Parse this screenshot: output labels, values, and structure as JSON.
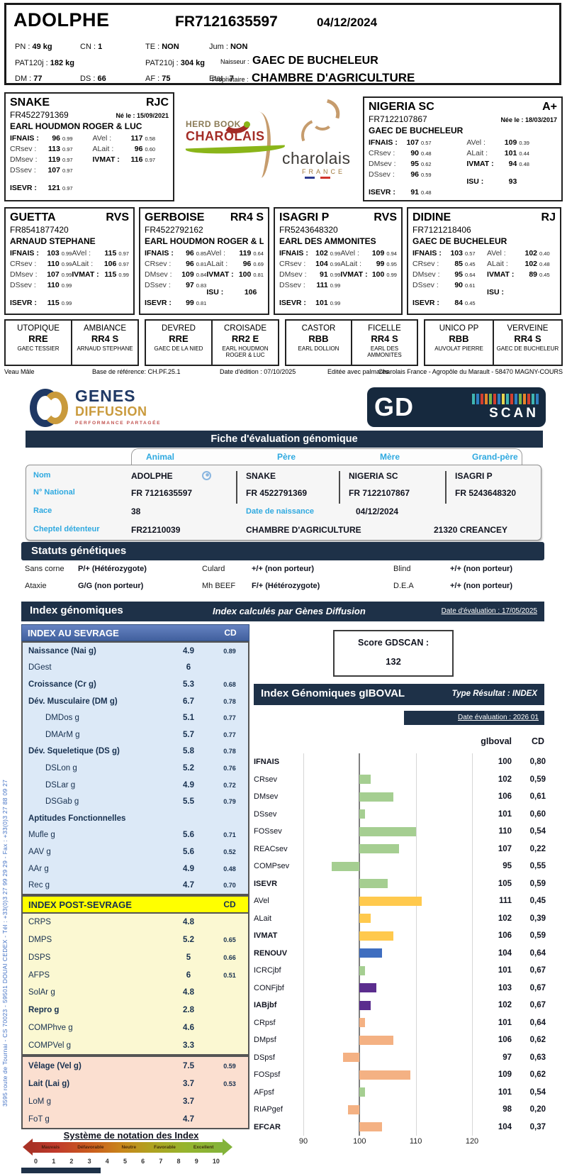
{
  "colors": {
    "navy": "#1e3148",
    "cyan": "#2ea9e0",
    "table_blue_header": "#4f6bab",
    "table_blue_bg": "#dce9f7",
    "yellow_header": "#ffff00",
    "yellow_bg": "#fbf8d2",
    "pink_bg": "#fbdfd0"
  },
  "bar_colors": {
    "green": "#a5ce91",
    "gold": "#ffc94d",
    "blue": "#3f6ec0",
    "purple": "#5b2d8e",
    "orange": "#f4b183"
  },
  "top_card": {
    "name": "ADOLPHE",
    "national_id": "FR7121635597",
    "birth_date": "04/12/2024",
    "stats_row1": [
      [
        "PN :",
        "49 kg"
      ],
      [
        "CN :",
        "1"
      ],
      [
        "TE :",
        "NON"
      ],
      [
        "Jum :",
        "NON"
      ]
    ],
    "stats_row2": [
      [
        "PAT120j :",
        "182 kg"
      ],
      [
        "PAT210j :",
        "304 kg"
      ]
    ],
    "stats_row3": [
      [
        "DM :",
        "77"
      ],
      [
        "DS :",
        "66"
      ],
      [
        "AF :",
        "75"
      ],
      [
        "Etat :",
        "7"
      ]
    ],
    "naisseur_label": "Naisseur :",
    "naisseur": "GAEC DE BUCHELEUR",
    "proprietaire_label": "Propriétaire :",
    "proprietaire": "CHAMBRE D'AGRICULTURE"
  },
  "herd_book_logo": {
    "line1": "HERD BOOK",
    "line2": "CHAROLAIS"
  },
  "charolais_logo": {
    "line1": "charolais",
    "line2": "FRANCE"
  },
  "parents": [
    {
      "name": "SNAKE",
      "grade": "RJC",
      "id": "FR4522791369",
      "born": "Né le : 15/09/2021",
      "breeder": "EARL HOUDMON ROGER & LUC",
      "left": [
        {
          "l": "IFNAIS :",
          "v": "96",
          "cd": "0.99",
          "b": true
        },
        {
          "l": "CRsev :",
          "v": "113",
          "cd": "0.97"
        },
        {
          "l": "DMsev :",
          "v": "119",
          "cd": "0.97"
        },
        {
          "l": "DSsev :",
          "v": "107",
          "cd": "0.97"
        },
        {
          "l": "ISEVR :",
          "v": "121",
          "cd": "0.97",
          "b": true,
          "gap": true
        }
      ],
      "right": [
        {
          "l": "AVel :",
          "v": "117",
          "cd": "0.58"
        },
        {
          "l": "ALait :",
          "v": "96",
          "cd": "0.60"
        },
        {
          "l": "IVMAT :",
          "v": "116",
          "cd": "0.97",
          "b": true
        }
      ]
    },
    {
      "name": "NIGERIA SC",
      "grade": "A+",
      "id": "FR7122107867",
      "born": "Née le : 18/03/2017",
      "breeder": "GAEC DE BUCHELEUR",
      "left": [
        {
          "l": "IFNAIS :",
          "v": "107",
          "cd": "0.57",
          "b": true
        },
        {
          "l": "CRsev :",
          "v": "90",
          "cd": "0.48"
        },
        {
          "l": "DMsev :",
          "v": "95",
          "cd": "0.62"
        },
        {
          "l": "DSsev :",
          "v": "96",
          "cd": "0.59"
        },
        {
          "l": "ISEVR :",
          "v": "91",
          "cd": "0.48",
          "b": true,
          "gap": true
        }
      ],
      "right": [
        {
          "l": "AVel :",
          "v": "109",
          "cd": "0.39"
        },
        {
          "l": "ALait :",
          "v": "101",
          "cd": "0.44"
        },
        {
          "l": "IVMAT :",
          "v": "94",
          "cd": "0.48",
          "b": true
        },
        {
          "l": "ISU :",
          "v": "93",
          "cd": "",
          "b": true,
          "gap": true
        }
      ]
    }
  ],
  "grandparents": [
    {
      "name": "GUETTA",
      "grade": "RVS",
      "id": "FR8541877420",
      "breeder": "ARNAUD STEPHANE",
      "left": [
        {
          "l": "IFNAIS :",
          "v": "103",
          "cd": "0.99",
          "b": true
        },
        {
          "l": "CRsev :",
          "v": "110",
          "cd": "0.99"
        },
        {
          "l": "DMsev :",
          "v": "107",
          "cd": "0.99"
        },
        {
          "l": "DSsev :",
          "v": "110",
          "cd": "0.99"
        },
        {
          "l": "ISEVR :",
          "v": "115",
          "cd": "0.99",
          "b": true,
          "gap": true
        }
      ],
      "right": [
        {
          "l": "AVel :",
          "v": "115",
          "cd": "0.97"
        },
        {
          "l": "ALait :",
          "v": "106",
          "cd": "0.97"
        },
        {
          "l": "IVMAT :",
          "v": "115",
          "cd": "0.99",
          "b": true
        }
      ]
    },
    {
      "name": "GERBOISE",
      "grade": "RR4 S",
      "id": "FR4522792162",
      "breeder": "EARL HOUDMON ROGER & LUC",
      "left": [
        {
          "l": "IFNAIS :",
          "v": "96",
          "cd": "0.85",
          "b": true
        },
        {
          "l": "CRsev :",
          "v": "96",
          "cd": "0.81"
        },
        {
          "l": "DMsev :",
          "v": "109",
          "cd": "0.84"
        },
        {
          "l": "DSsev :",
          "v": "97",
          "cd": "0.83"
        },
        {
          "l": "ISEVR :",
          "v": "99",
          "cd": "0.81",
          "b": true,
          "gap": true
        }
      ],
      "right": [
        {
          "l": "AVel :",
          "v": "119",
          "cd": "0.64"
        },
        {
          "l": "ALait :",
          "v": "96",
          "cd": "0.69"
        },
        {
          "l": "IVMAT :",
          "v": "100",
          "cd": "0.81",
          "b": true
        },
        {
          "l": "ISU :",
          "v": "106",
          "cd": "",
          "b": true,
          "gap": true
        }
      ]
    },
    {
      "name": "ISAGRI P",
      "grade": "RVS",
      "id": "FR5243648320",
      "breeder": "EARL DES AMMONITES",
      "left": [
        {
          "l": "IFNAIS :",
          "v": "102",
          "cd": "0.99",
          "b": true
        },
        {
          "l": "CRsev :",
          "v": "104",
          "cd": "0.99"
        },
        {
          "l": "DMsev :",
          "v": "91",
          "cd": "0.99"
        },
        {
          "l": "DSsev :",
          "v": "111",
          "cd": "0.99"
        },
        {
          "l": "ISEVR :",
          "v": "101",
          "cd": "0.99",
          "b": true,
          "gap": true
        }
      ],
      "right": [
        {
          "l": "AVel :",
          "v": "109",
          "cd": "0.94"
        },
        {
          "l": "ALait :",
          "v": "99",
          "cd": "0.95"
        },
        {
          "l": "IVMAT :",
          "v": "100",
          "cd": "0.99",
          "b": true
        }
      ]
    },
    {
      "name": "DIDINE",
      "grade": "RJ",
      "id": "FR7121218406",
      "breeder": "GAEC DE BUCHELEUR",
      "left": [
        {
          "l": "IFNAIS :",
          "v": "103",
          "cd": "0.57",
          "b": true
        },
        {
          "l": "CRsev :",
          "v": "85",
          "cd": "0.45"
        },
        {
          "l": "DMsev :",
          "v": "95",
          "cd": "0.64"
        },
        {
          "l": "DSsev :",
          "v": "90",
          "cd": "0.61"
        },
        {
          "l": "ISEVR :",
          "v": "84",
          "cd": "0.45",
          "b": true,
          "gap": true
        }
      ],
      "right": [
        {
          "l": "AVel :",
          "v": "102",
          "cd": "0.40"
        },
        {
          "l": "ALait :",
          "v": "102",
          "cd": "0.48"
        },
        {
          "l": "IVMAT :",
          "v": "89",
          "cd": "0.45",
          "b": true
        },
        {
          "l": "ISU :",
          "v": "",
          "cd": "",
          "b": true,
          "gap": true
        }
      ]
    }
  ],
  "great_grandparents": [
    {
      "name": "UTOPIQUE",
      "code": "RRE",
      "breeder": "GAEC TESSIER"
    },
    {
      "name": "AMBIANCE",
      "code": "RR4 S",
      "breeder": "ARNAUD STEPHANE"
    },
    {
      "name": "DEVRED",
      "code": "RRE",
      "breeder": "GAEC DE LA NIED"
    },
    {
      "name": "CROISADE",
      "code": "RR2 E",
      "breeder": "EARL HOUDMON ROGER & LUC"
    },
    {
      "name": "CASTOR",
      "code": "RBB",
      "breeder": "EARL DOLLION"
    },
    {
      "name": "FICELLE",
      "code": "RR4 S",
      "breeder": "EARL DES AMMONITES"
    },
    {
      "name": "UNICO PP",
      "code": "RBB",
      "breeder": "AUVOLAT PIERRE"
    },
    {
      "name": "VERVEINE",
      "code": "RR4 S",
      "breeder": "GAEC DE BUCHELEUR"
    }
  ],
  "top_footer": {
    "sex": "Veau Mâle",
    "base": "Base de référence: CH.PF.25.1",
    "edition": "Date d'édition : 07/10/2025",
    "palmares": "Editée avec palmarès",
    "address": "Charolais France - Agropôle du Marault - 58470 MAGNY-COURS"
  },
  "gd": {
    "logo": {
      "name1": "GENES",
      "name2": "DIFFUSION",
      "tagline": "PERFORMANCE PARTAGÉE"
    },
    "gdscan": {
      "gd": "GD",
      "scan": "SCAN"
    },
    "banner": "Fiche d'évaluation génomique",
    "columns": [
      "Animal",
      "Père",
      "Mère",
      "Grand-père"
    ],
    "info": {
      "labels": [
        "Nom",
        "N° National",
        "Race",
        "Cheptel détenteur"
      ],
      "nom": [
        "ADOLPHE",
        "SNAKE",
        "NIGERIA SC",
        "ISAGRI P"
      ],
      "national": [
        "FR 7121635597",
        "FR 4522791369",
        "FR 7122107867",
        "FR 5243648320"
      ],
      "race": "38",
      "birth_label": "Date de naissance",
      "birth": "04/12/2024",
      "cheptel": [
        "FR21210039",
        "CHAMBRE D'AGRICULTURE",
        "21320 CREANCEY"
      ]
    },
    "statuts": {
      "title": "Statuts génétiques",
      "rows": [
        [
          [
            "Sans corne",
            "P/+ (Hétérozygote)"
          ],
          [
            "Culard",
            "+/+ (non porteur)"
          ],
          [
            "Blind",
            "+/+ (non porteur)"
          ]
        ],
        [
          [
            "Ataxie",
            "G/G (non porteur)"
          ],
          [
            "Mh BEEF",
            "F/+ (Hétérozygote)"
          ],
          [
            "D.E.A",
            "+/+ (non porteur)"
          ]
        ]
      ]
    },
    "index_banner": {
      "title": "Index génomiques",
      "middle": "Index calculés par Gènes Diffusion",
      "date": "Date d'évaluation : 17/05/2025"
    },
    "sevrage": {
      "title": "INDEX AU SEVRAGE",
      "cd": "CD",
      "rows": [
        {
          "l": "Naissance (Nai g)",
          "v": "4.9",
          "cd": "0.89",
          "b": true
        },
        {
          "l": "DGest",
          "v": "6",
          "cd": ""
        },
        {
          "l": "Croissance (Cr g)",
          "v": "5.3",
          "cd": "0.68",
          "b": true
        },
        {
          "l": "Dév. Musculaire (DM g)",
          "v": "6.7",
          "cd": "0.78",
          "b": true
        },
        {
          "l": "DMDos g",
          "v": "5.1",
          "cd": "0.77",
          "ind": true
        },
        {
          "l": "DMArM g",
          "v": "5.7",
          "cd": "0.77",
          "ind": true
        },
        {
          "l": "Dév. Squeletique (DS g)",
          "v": "5.8",
          "cd": "0.78",
          "b": true
        },
        {
          "l": "DSLon g",
          "v": "5.2",
          "cd": "0.76",
          "ind": true
        },
        {
          "l": "DSLar g",
          "v": "4.9",
          "cd": "0.72",
          "ind": true
        },
        {
          "l": "DSGab g",
          "v": "5.5",
          "cd": "0.79",
          "ind": true
        },
        {
          "l": "Aptitudes Fonctionnelles",
          "v": "",
          "cd": "",
          "b": true
        },
        {
          "l": "Mufle g",
          "v": "5.6",
          "cd": "0.71"
        },
        {
          "l": "AAV g",
          "v": "5.6",
          "cd": "0.52"
        },
        {
          "l": "AAr g",
          "v": "4.9",
          "cd": "0.48"
        },
        {
          "l": "Rec g",
          "v": "4.7",
          "cd": "0.70"
        }
      ]
    },
    "post_sevrage": {
      "title": "INDEX POST-SEVRAGE",
      "cd": "CD",
      "rows": [
        {
          "l": "CRPS",
          "v": "4.8",
          "cd": ""
        },
        {
          "l": "DMPS",
          "v": "5.2",
          "cd": "0.65"
        },
        {
          "l": "DSPS",
          "v": "5",
          "cd": "0.66"
        },
        {
          "l": "AFPS",
          "v": "6",
          "cd": "0.51"
        },
        {
          "l": "SolAr g",
          "v": "4.8",
          "cd": ""
        },
        {
          "l": "Repro g",
          "v": "2.8",
          "cd": "",
          "b": true
        },
        {
          "l": "COMPhve g",
          "v": "4.6",
          "cd": ""
        },
        {
          "l": "COMPVel g",
          "v": "3.3",
          "cd": ""
        }
      ]
    },
    "maternal": {
      "rows": [
        {
          "l": "Vêlage (Vel g)",
          "v": "7.5",
          "cd": "0.59",
          "b": true
        },
        {
          "l": "Lait (Lai g)",
          "v": "3.7",
          "cd": "0.53",
          "b": true
        },
        {
          "l": "LoM g",
          "v": "3.7",
          "cd": ""
        },
        {
          "l": "FoT g",
          "v": "4.7",
          "cd": ""
        }
      ]
    },
    "notation": {
      "title": "Système de notation des Index",
      "labels": [
        "Mauvais",
        "Défavorable",
        "Neutre",
        "Favorable",
        "Excellent"
      ],
      "scale": [
        "0",
        "1",
        "2",
        "3",
        "4",
        "5",
        "6",
        "7",
        "8",
        "9",
        "10"
      ]
    },
    "score": {
      "label": "Score GDSCAN :",
      "value": "132"
    },
    "giboval_banner": {
      "title": "Index Génomiques gIBOVAL",
      "type": "Type Résultat : INDEX",
      "date": "Date évaluation : 2026 01"
    },
    "chart_headers": {
      "value": "gIboval",
      "cd": "CD"
    }
  },
  "chart_data": {
    "type": "bar",
    "orientation": "horizontal",
    "title": "Index Génomiques gIBOVAL",
    "x_ticks": [
      90,
      100,
      110,
      120
    ],
    "xlim": [
      90,
      120
    ],
    "baseline": 100,
    "rows": [
      {
        "label": "IFNAIS",
        "value": 100,
        "cd": "0,80",
        "bold": true,
        "color": "none"
      },
      {
        "label": "CRsev",
        "value": 102,
        "cd": "0,59",
        "color": "green"
      },
      {
        "label": "DMsev",
        "value": 106,
        "cd": "0,61",
        "color": "green"
      },
      {
        "label": "DSsev",
        "value": 101,
        "cd": "0,60",
        "color": "green"
      },
      {
        "label": "FOSsev",
        "value": 110,
        "cd": "0,54",
        "color": "green"
      },
      {
        "label": "REACsev",
        "value": 107,
        "cd": "0,22",
        "color": "green"
      },
      {
        "label": "COMPsev",
        "value": 95,
        "cd": "0,55",
        "color": "green"
      },
      {
        "label": "ISEVR",
        "value": 105,
        "cd": "0,59",
        "bold": true,
        "color": "green"
      },
      {
        "label": "AVel",
        "value": 111,
        "cd": "0,45",
        "color": "gold"
      },
      {
        "label": "ALait",
        "value": 102,
        "cd": "0,39",
        "color": "gold"
      },
      {
        "label": "IVMAT",
        "value": 106,
        "cd": "0,59",
        "bold": true,
        "color": "gold"
      },
      {
        "label": "RENOUV",
        "value": 104,
        "cd": "0,64",
        "bold": true,
        "color": "blue"
      },
      {
        "label": "ICRCjbf",
        "value": 101,
        "cd": "0,67",
        "color": "green"
      },
      {
        "label": "CONFjbf",
        "value": 103,
        "cd": "0,67",
        "color": "purple"
      },
      {
        "label": "IABjbf",
        "value": 102,
        "cd": "0,67",
        "bold": true,
        "color": "purple"
      },
      {
        "label": "CRpsf",
        "value": 101,
        "cd": "0,64",
        "color": "orange"
      },
      {
        "label": "DMpsf",
        "value": 106,
        "cd": "0,62",
        "color": "orange"
      },
      {
        "label": "DSpsf",
        "value": 97,
        "cd": "0,63",
        "color": "orange"
      },
      {
        "label": "FOSpsf",
        "value": 109,
        "cd": "0,62",
        "color": "orange"
      },
      {
        "label": "AFpsf",
        "value": 101,
        "cd": "0,54",
        "color": "green"
      },
      {
        "label": "RIAPgef",
        "value": 98,
        "cd": "0,20",
        "color": "orange"
      },
      {
        "label": "EFCAR",
        "value": 104,
        "cd": "0,37",
        "bold": true,
        "color": "orange"
      }
    ]
  },
  "sidebar_address": "3595 route de Tournai - CS 70023 - 59501 DOUAI CEDEX - Tél : +33(0)3 27 99 29 29 - Fax : +33(0)3 27 88 09 27"
}
